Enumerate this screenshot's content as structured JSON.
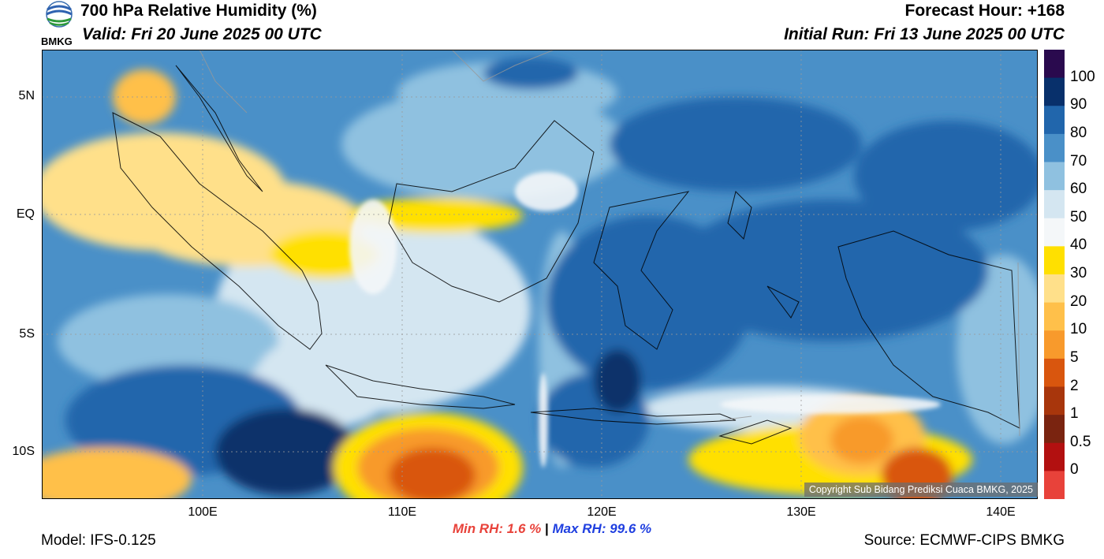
{
  "header": {
    "title": "700 hPa Relative Humidity (%)",
    "valid": "Valid: Fri 20 June 2025 00 UTC",
    "forecast_hour": "Forecast Hour: +168",
    "initial_run": "Initial Run: Fri 13 June 2025 00 UTC",
    "logo_text": "BMKG"
  },
  "map": {
    "lat_labels": [
      "5N",
      "EQ",
      "5S",
      "10S"
    ],
    "lon_labels": [
      "100E",
      "110E",
      "120E",
      "130E",
      "140E"
    ],
    "copyright": "Copyright Sub Bidang Prediksi Cuaca BMKG, 2025"
  },
  "colorbar": {
    "labels": [
      "100",
      "90",
      "80",
      "70",
      "60",
      "50",
      "40",
      "30",
      "20",
      "10",
      "5",
      "2",
      "1",
      "0.5",
      "0"
    ],
    "colors": [
      "#2a0a4e",
      "#08306b",
      "#2166ac",
      "#4a90c8",
      "#8fc1e0",
      "#d4e6f1",
      "#f4f7f9",
      "#ffe000",
      "#ffe08a",
      "#ffc04a",
      "#f89a2c",
      "#d9560e",
      "#a8360c",
      "#7a2410",
      "#b21010",
      "#e8423a"
    ]
  },
  "stats": {
    "min_label": "Min RH:",
    "min_value": "1.6 %",
    "separator": "|",
    "max_label": "Max RH:",
    "max_value": "99.6 %"
  },
  "footer": {
    "model": "Model: IFS-0.125",
    "source": "Source: ECMWF-CIPS BMKG"
  }
}
